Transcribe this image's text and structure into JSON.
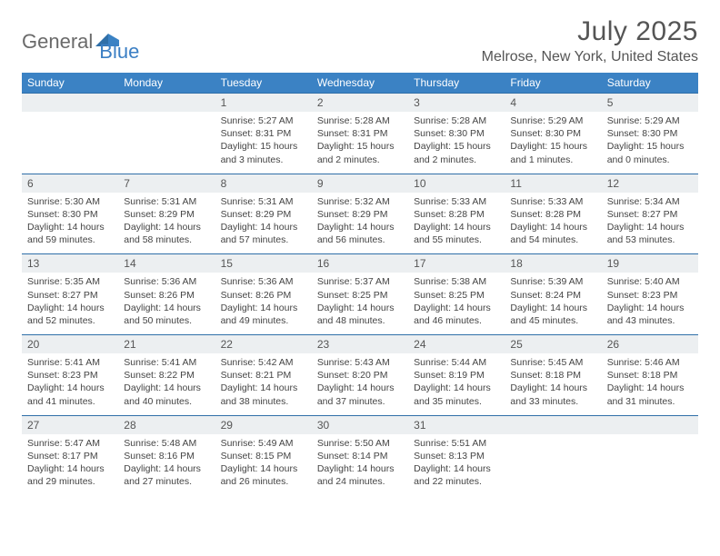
{
  "brand": {
    "text1": "General",
    "text2": "Blue"
  },
  "title": "July 2025",
  "location": "Melrose, New York, United States",
  "style": {
    "header_bg": "#3b82c4",
    "header_text": "#ffffff",
    "row_border": "#2f6fa8",
    "daynum_bg": "#eceff1",
    "body_bg": "#ffffff",
    "text_color": "#444444",
    "title_color": "#555555",
    "font_family": "Arial, Helvetica, sans-serif",
    "title_fontsize_pt": 22,
    "location_fontsize_pt": 12,
    "weekday_fontsize_pt": 9,
    "daynum_fontsize_pt": 9,
    "body_fontsize_pt": 8
  },
  "weekdays": [
    "Sunday",
    "Monday",
    "Tuesday",
    "Wednesday",
    "Thursday",
    "Friday",
    "Saturday"
  ],
  "weeks": [
    [
      null,
      null,
      {
        "n": "1",
        "sr": "5:27 AM",
        "ss": "8:31 PM",
        "dh": 15,
        "dm": 3
      },
      {
        "n": "2",
        "sr": "5:28 AM",
        "ss": "8:31 PM",
        "dh": 15,
        "dm": 2
      },
      {
        "n": "3",
        "sr": "5:28 AM",
        "ss": "8:30 PM",
        "dh": 15,
        "dm": 2
      },
      {
        "n": "4",
        "sr": "5:29 AM",
        "ss": "8:30 PM",
        "dh": 15,
        "dm": 1
      },
      {
        "n": "5",
        "sr": "5:29 AM",
        "ss": "8:30 PM",
        "dh": 15,
        "dm": 0
      }
    ],
    [
      {
        "n": "6",
        "sr": "5:30 AM",
        "ss": "8:30 PM",
        "dh": 14,
        "dm": 59
      },
      {
        "n": "7",
        "sr": "5:31 AM",
        "ss": "8:29 PM",
        "dh": 14,
        "dm": 58
      },
      {
        "n": "8",
        "sr": "5:31 AM",
        "ss": "8:29 PM",
        "dh": 14,
        "dm": 57
      },
      {
        "n": "9",
        "sr": "5:32 AM",
        "ss": "8:29 PM",
        "dh": 14,
        "dm": 56
      },
      {
        "n": "10",
        "sr": "5:33 AM",
        "ss": "8:28 PM",
        "dh": 14,
        "dm": 55
      },
      {
        "n": "11",
        "sr": "5:33 AM",
        "ss": "8:28 PM",
        "dh": 14,
        "dm": 54
      },
      {
        "n": "12",
        "sr": "5:34 AM",
        "ss": "8:27 PM",
        "dh": 14,
        "dm": 53
      }
    ],
    [
      {
        "n": "13",
        "sr": "5:35 AM",
        "ss": "8:27 PM",
        "dh": 14,
        "dm": 52
      },
      {
        "n": "14",
        "sr": "5:36 AM",
        "ss": "8:26 PM",
        "dh": 14,
        "dm": 50
      },
      {
        "n": "15",
        "sr": "5:36 AM",
        "ss": "8:26 PM",
        "dh": 14,
        "dm": 49
      },
      {
        "n": "16",
        "sr": "5:37 AM",
        "ss": "8:25 PM",
        "dh": 14,
        "dm": 48
      },
      {
        "n": "17",
        "sr": "5:38 AM",
        "ss": "8:25 PM",
        "dh": 14,
        "dm": 46
      },
      {
        "n": "18",
        "sr": "5:39 AM",
        "ss": "8:24 PM",
        "dh": 14,
        "dm": 45
      },
      {
        "n": "19",
        "sr": "5:40 AM",
        "ss": "8:23 PM",
        "dh": 14,
        "dm": 43
      }
    ],
    [
      {
        "n": "20",
        "sr": "5:41 AM",
        "ss": "8:23 PM",
        "dh": 14,
        "dm": 41
      },
      {
        "n": "21",
        "sr": "5:41 AM",
        "ss": "8:22 PM",
        "dh": 14,
        "dm": 40
      },
      {
        "n": "22",
        "sr": "5:42 AM",
        "ss": "8:21 PM",
        "dh": 14,
        "dm": 38
      },
      {
        "n": "23",
        "sr": "5:43 AM",
        "ss": "8:20 PM",
        "dh": 14,
        "dm": 37
      },
      {
        "n": "24",
        "sr": "5:44 AM",
        "ss": "8:19 PM",
        "dh": 14,
        "dm": 35
      },
      {
        "n": "25",
        "sr": "5:45 AM",
        "ss": "8:18 PM",
        "dh": 14,
        "dm": 33
      },
      {
        "n": "26",
        "sr": "5:46 AM",
        "ss": "8:18 PM",
        "dh": 14,
        "dm": 31
      }
    ],
    [
      {
        "n": "27",
        "sr": "5:47 AM",
        "ss": "8:17 PM",
        "dh": 14,
        "dm": 29
      },
      {
        "n": "28",
        "sr": "5:48 AM",
        "ss": "8:16 PM",
        "dh": 14,
        "dm": 27
      },
      {
        "n": "29",
        "sr": "5:49 AM",
        "ss": "8:15 PM",
        "dh": 14,
        "dm": 26
      },
      {
        "n": "30",
        "sr": "5:50 AM",
        "ss": "8:14 PM",
        "dh": 14,
        "dm": 24
      },
      {
        "n": "31",
        "sr": "5:51 AM",
        "ss": "8:13 PM",
        "dh": 14,
        "dm": 22
      },
      null,
      null
    ]
  ],
  "labels": {
    "sunrise": "Sunrise:",
    "sunset": "Sunset:",
    "daylight": "Daylight:",
    "hours": "hours",
    "and": "and",
    "minutes": "minutes."
  }
}
